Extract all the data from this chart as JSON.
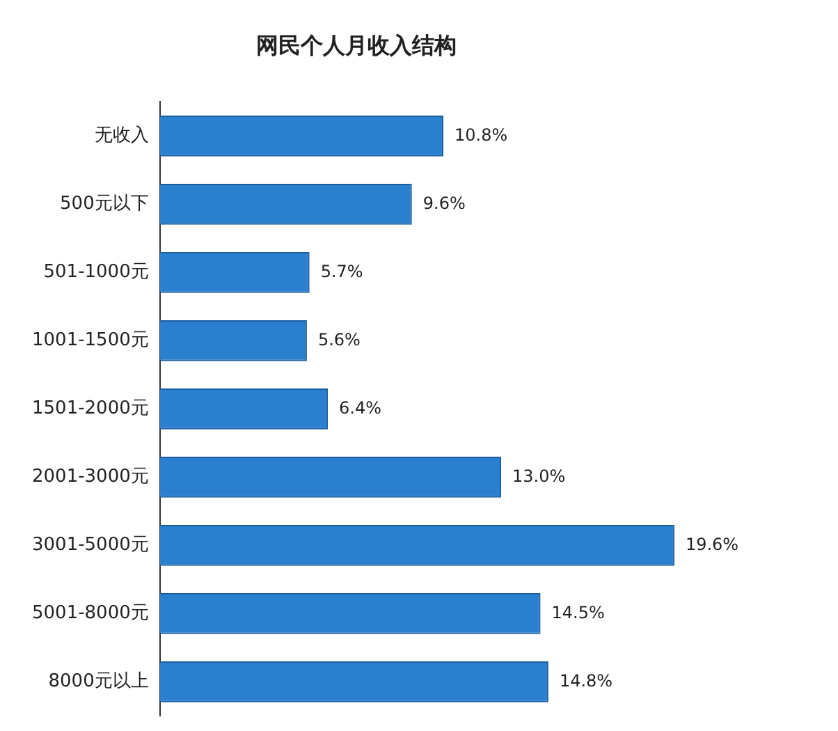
{
  "chart_data": {
    "type": "bar",
    "orientation": "horizontal",
    "title": "网民个人月收入结构",
    "categories": [
      "无收入",
      "500元以下",
      "501-1000元",
      "1001-1500元",
      "1501-2000元",
      "2001-3000元",
      "3001-5000元",
      "5001-8000元",
      "8000元以上"
    ],
    "values": [
      10.8,
      9.6,
      5.7,
      5.6,
      6.4,
      13.0,
      19.6,
      14.5,
      14.8
    ],
    "value_labels": [
      "10.8%",
      "9.6%",
      "5.7%",
      "5.6%",
      "6.4%",
      "13.0%",
      "19.6%",
      "14.5%",
      "14.8%"
    ],
    "color": "#2a7fcf",
    "grid": false,
    "legend": false
  }
}
